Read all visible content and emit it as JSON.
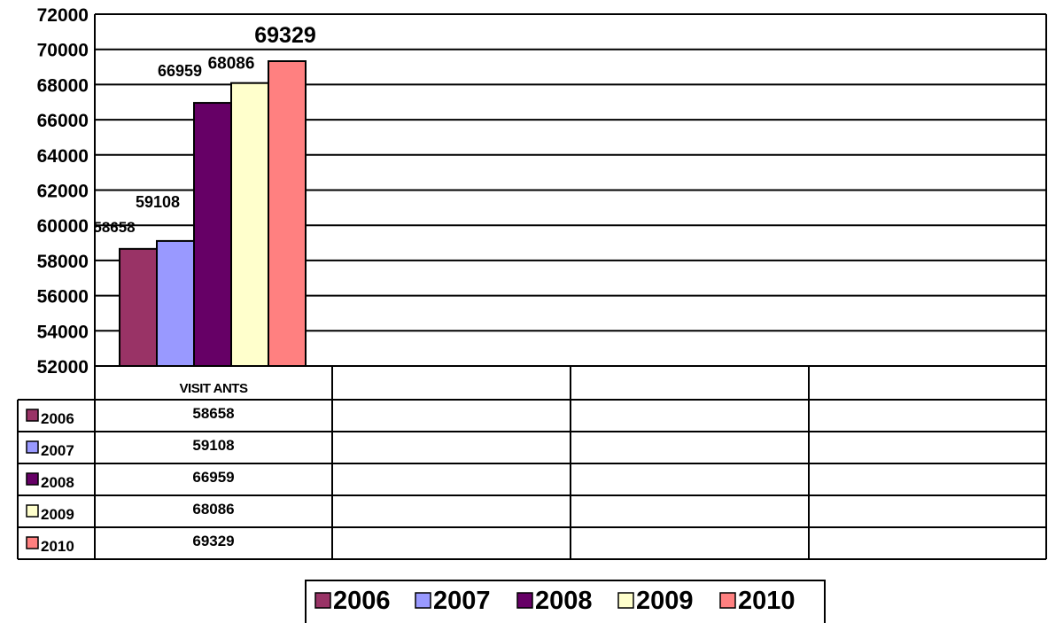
{
  "chart_data": {
    "type": "bar",
    "categories": [
      "VISIT ANTS"
    ],
    "series": [
      {
        "name": "2006",
        "values": [
          58658
        ],
        "color": "#993366"
      },
      {
        "name": "2007",
        "values": [
          59108
        ],
        "color": "#9999FF"
      },
      {
        "name": "2008",
        "values": [
          66959
        ],
        "color": "#660066"
      },
      {
        "name": "2009",
        "values": [
          68086
        ],
        "color": "#FFFFCC"
      },
      {
        "name": "2010",
        "values": [
          69329
        ],
        "color": "#FF8080"
      }
    ],
    "y_ticks": [
      "52000",
      "54000",
      "56000",
      "58000",
      "60000",
      "62000",
      "64000",
      "66000",
      "68000",
      "70000",
      "72000"
    ],
    "ylim": [
      52000,
      72000
    ],
    "grid": true,
    "data_table": true,
    "legend_position": "bottom"
  }
}
